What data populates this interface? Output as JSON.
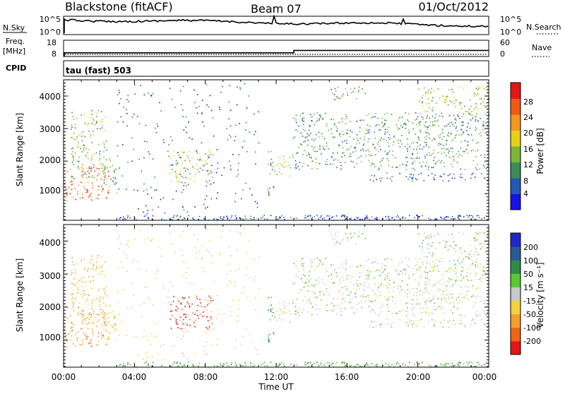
{
  "header": {
    "title": "Blackstone (fitACF)",
    "beam": "Beam 07",
    "date": "01/Oct/2012"
  },
  "noise_panel": {
    "left_label": "N.Sky",
    "left_ticks": [
      "10^5",
      "10^0"
    ],
    "right_ticks": [
      "10^5",
      "10^0"
    ],
    "right_label": "N.Search"
  },
  "freq_panel": {
    "left_label_line1": "Freq.",
    "left_label_line2": "[MHz]",
    "left_ticks": [
      "18",
      "8"
    ],
    "right_ticks": [
      "60",
      "0"
    ],
    "right_label": "Nave",
    "freq_step": {
      "before_mhz": 10.6,
      "after_mhz": 12.3,
      "switch_hour": 13.0
    }
  },
  "cpid": {
    "label": "CPID",
    "mode": "tau (fast) 503"
  },
  "chart_data": [
    {
      "type": "heatmap",
      "name": "power",
      "xlabel": "",
      "ylabel": "Slant Range [km]",
      "x_ticks": [
        "00:00",
        "04:00",
        "08:00",
        "12:00",
        "16:00",
        "20:00",
        "00:00"
      ],
      "x_range_hours": [
        0,
        24
      ],
      "y_ticks": [
        "1000",
        "2000",
        "3000",
        "4000"
      ],
      "y_range_km": [
        180,
        4500
      ],
      "colorbar": {
        "label": "Power [dB]",
        "ticks": [
          "4",
          "8",
          "12",
          "16",
          "20",
          "24",
          "28"
        ],
        "range": [
          0,
          30
        ],
        "colors": [
          "#1414e6",
          "#2258b8",
          "#3c8c5a",
          "#7ab834",
          "#e6d214",
          "#f5961e",
          "#f05a14",
          "#e61414"
        ]
      }
    },
    {
      "type": "heatmap",
      "name": "velocity",
      "xlabel": "Time UT",
      "ylabel": "Slant Range [km]",
      "x_ticks": [
        "00:00",
        "04:00",
        "08:00",
        "12:00",
        "16:00",
        "20:00",
        "00:00"
      ],
      "x_range_hours": [
        0,
        24
      ],
      "y_ticks": [
        "1000",
        "2000",
        "3000",
        "4000"
      ],
      "y_range_km": [
        180,
        4500
      ],
      "colorbar": {
        "label": "Velocity [m s⁻¹]",
        "ticks": [
          "200",
          "100",
          "50",
          "15",
          "-15",
          "-50",
          "-100",
          "-200"
        ],
        "range": [
          -250,
          250
        ],
        "colors": [
          "#1e28c8",
          "#285a96",
          "#2d8c46",
          "#5ac832",
          "#c8c8c8",
          "#f5d23c",
          "#f5a028",
          "#f06414",
          "#e61414"
        ]
      }
    }
  ],
  "scatter_regions": [
    {
      "t0": 0.0,
      "t1": 2.6,
      "r0": 800,
      "r1": 1850,
      "pow": 24,
      "vel": -80
    },
    {
      "t0": 0.4,
      "t1": 2.4,
      "r0": 1500,
      "r1": 3600,
      "pow": 12,
      "vel": -60
    },
    {
      "t0": 2.2,
      "t1": 3.0,
      "r0": 1000,
      "r1": 2200,
      "pow": 10,
      "vel": -40
    },
    {
      "t0": 6.0,
      "t1": 8.4,
      "r0": 1350,
      "r1": 2350,
      "pow": 14,
      "vel": -220
    },
    {
      "t0": 11.5,
      "t1": 11.9,
      "r0": 800,
      "r1": 2400,
      "pow": 10,
      "vel": 60
    },
    {
      "t0": 12.0,
      "t1": 12.9,
      "r0": 1550,
      "r1": 2200,
      "pow": 18,
      "vel": -10
    },
    {
      "t0": 12.9,
      "t1": 24.0,
      "r0": 1750,
      "r1": 3500,
      "pow": 10,
      "vel": 5
    },
    {
      "t0": 17.0,
      "t1": 24.0,
      "r0": 1400,
      "r1": 1650,
      "pow": 6,
      "vel": 5
    },
    {
      "t0": 15.0,
      "t1": 17.0,
      "r0": 3900,
      "r1": 4300,
      "pow": 10,
      "vel": 10
    },
    {
      "t0": 20.0,
      "t1": 24.0,
      "r0": 3500,
      "r1": 4300,
      "pow": 14,
      "vel": 10
    },
    {
      "t0": 3.0,
      "t1": 24.0,
      "r0": 200,
      "r1": 350,
      "pow": 5,
      "vel": 40
    },
    {
      "t0": 3.0,
      "t1": 11.0,
      "r0": 400,
      "r1": 4400,
      "pow": 6,
      "vel": -20
    }
  ]
}
